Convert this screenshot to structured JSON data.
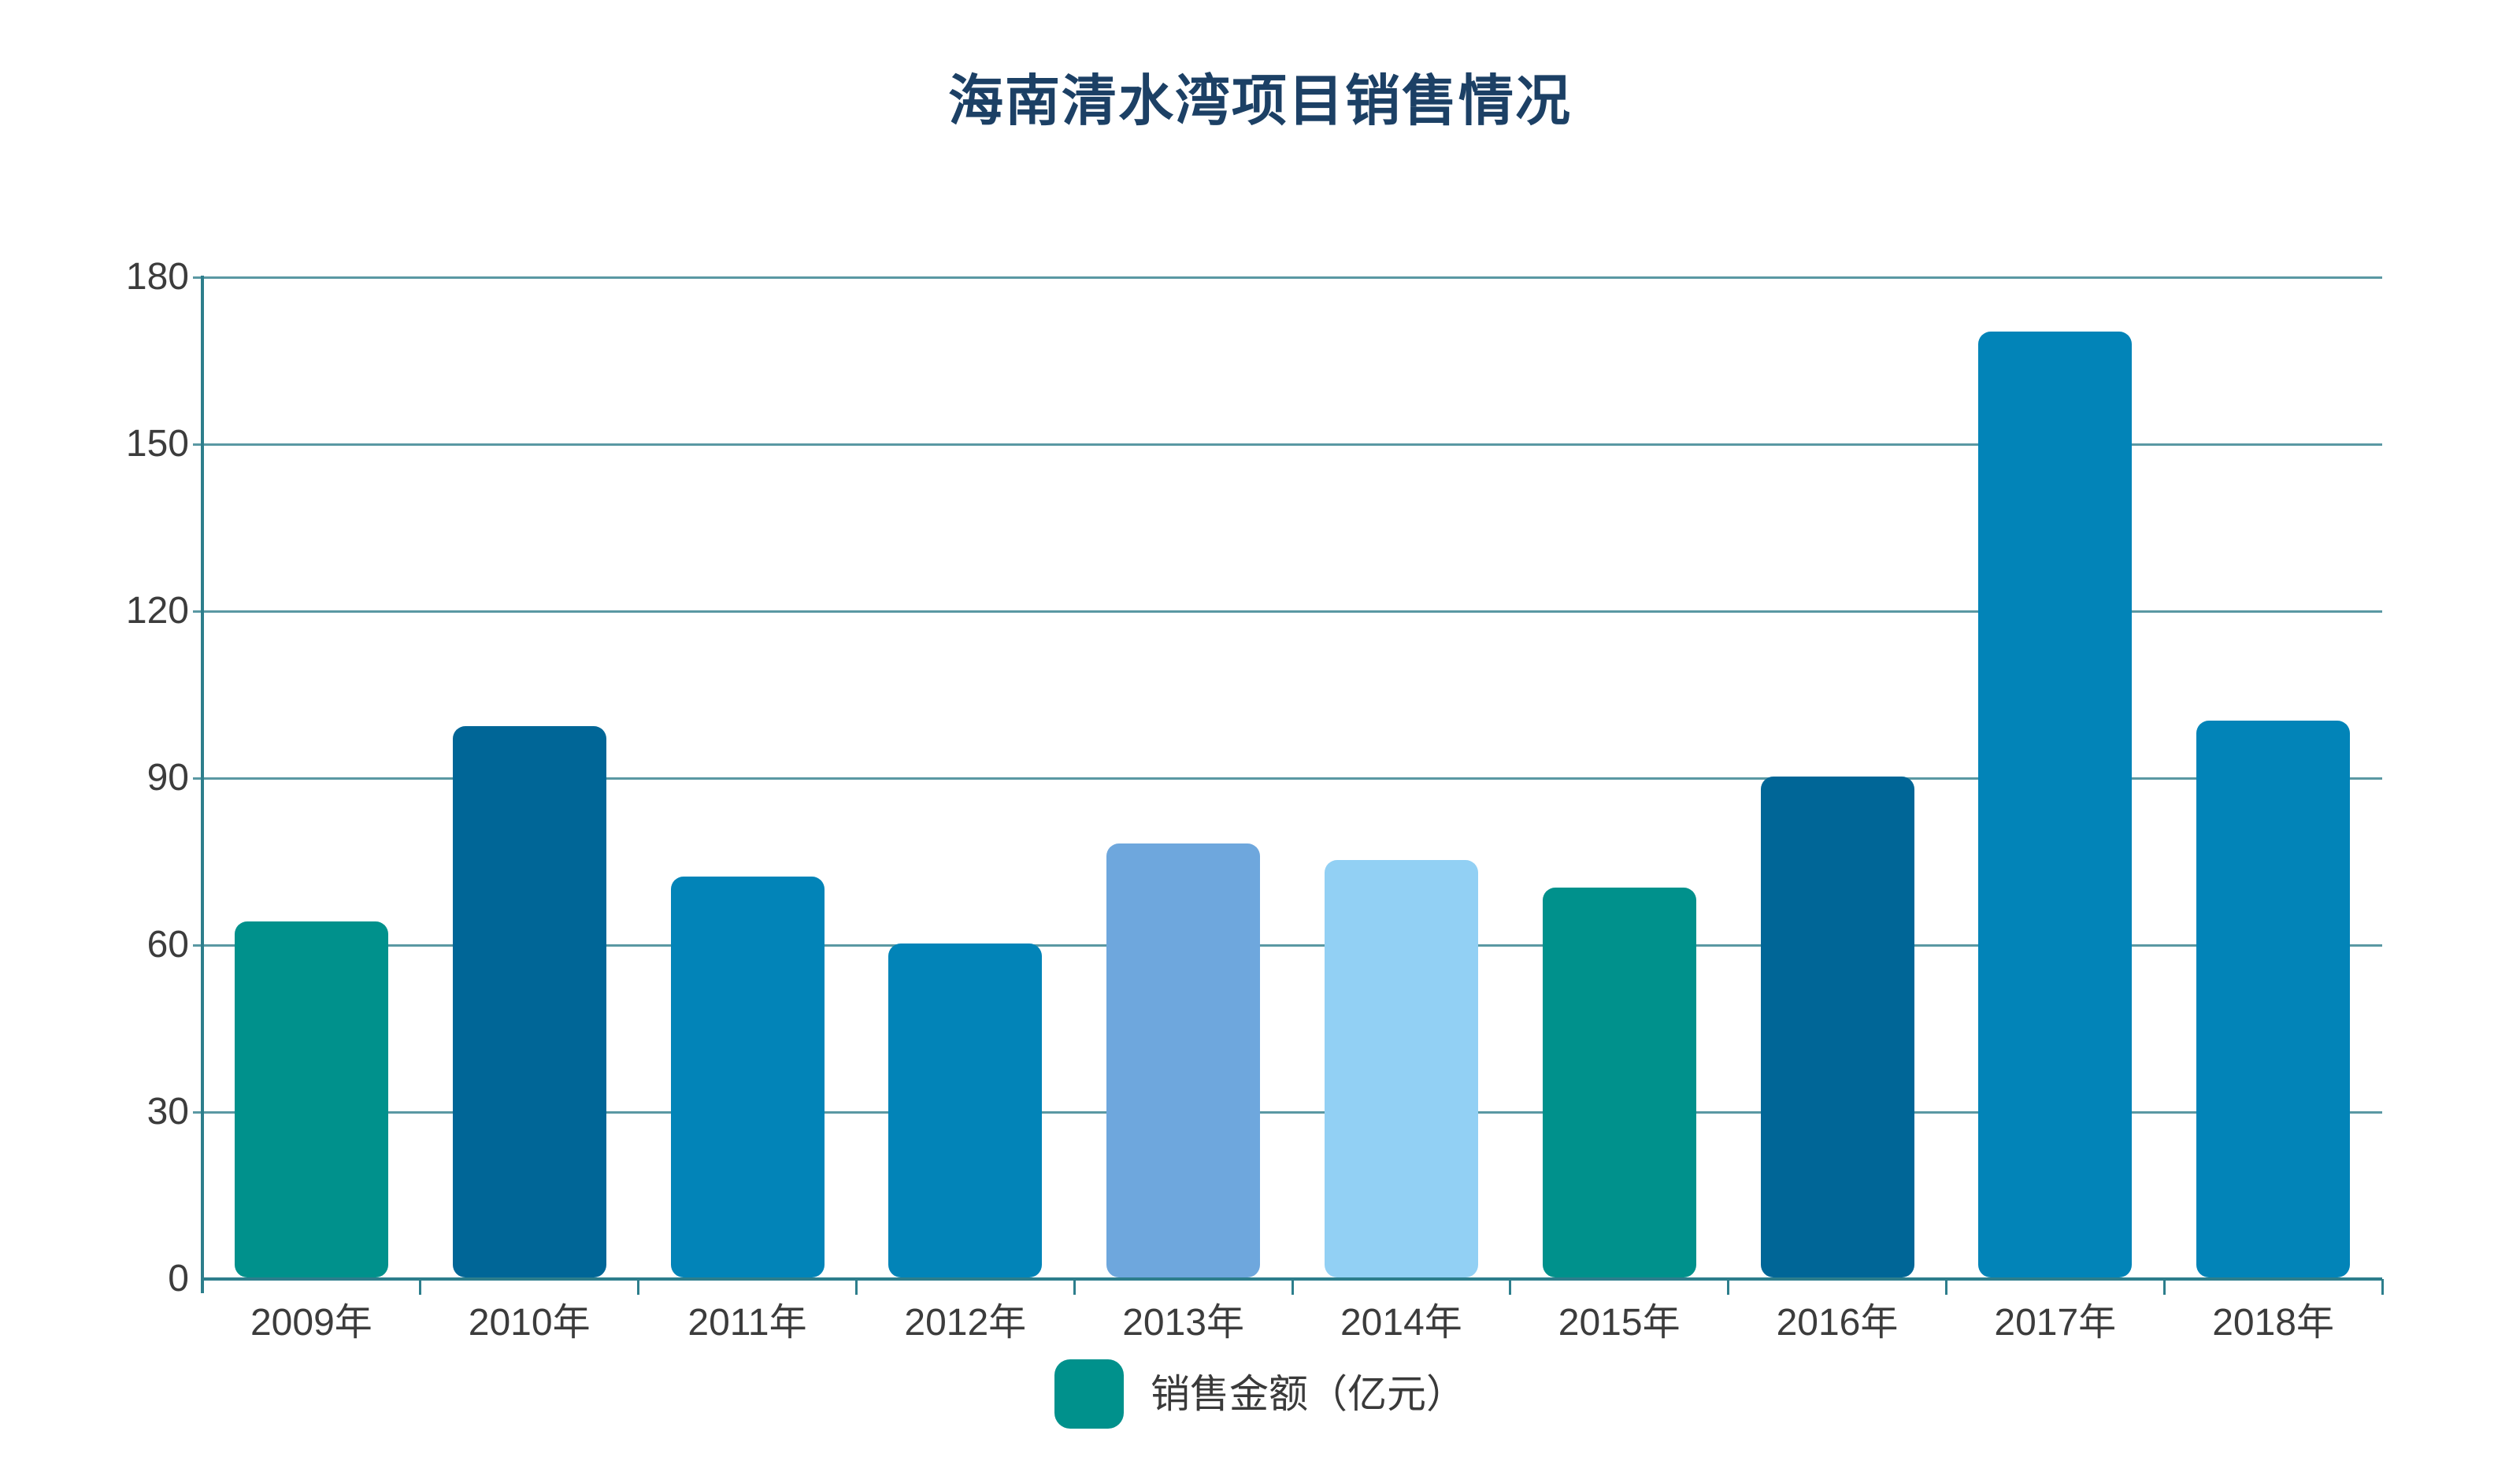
{
  "chart_data": {
    "type": "bar",
    "title": "海南清水湾项目销售情况",
    "legend": "销售金额（亿元）",
    "legend_position": "bottom",
    "categories": [
      "2009年",
      "2010年",
      "2011年",
      "2012年",
      "2013年",
      "2014年",
      "2015年",
      "2016年",
      "2017年",
      "2018年"
    ],
    "values": [
      64,
      99,
      72,
      60,
      78,
      75,
      70,
      90,
      170,
      100
    ],
    "bar_colors": [
      "#00918C",
      "#006697",
      "#0284B8",
      "#0284B8",
      "#6EA7DD",
      "#92D0F4",
      "#00918C",
      "#006697",
      "#0284B8",
      "#0284B8"
    ],
    "legend_color": "#00918C",
    "xlabel": "",
    "ylabel": "",
    "ylim": [
      0,
      180
    ],
    "yticks": [
      0,
      30,
      60,
      90,
      120,
      150,
      180
    ],
    "grid": true
  },
  "colors": {
    "background": "#FFFFFF",
    "title": "#1C4065",
    "axis": "#2D7E8C",
    "grid": "#5A98A3",
    "tick_label": "#3C3C3C",
    "legend_text": "#3A3A3A"
  }
}
